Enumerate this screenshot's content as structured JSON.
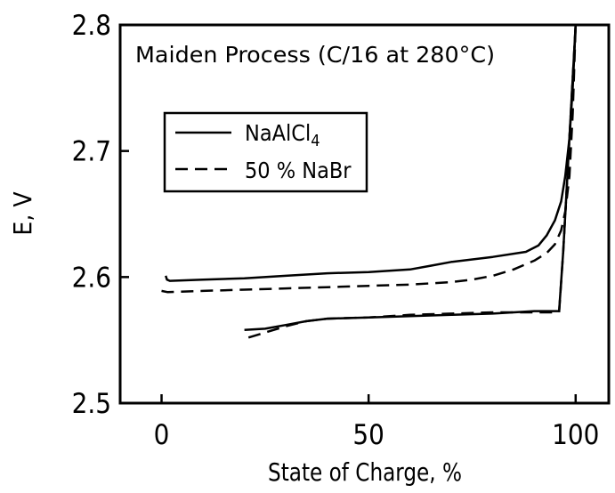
{
  "chart_data": {
    "type": "line",
    "title": "",
    "annotation": "Maiden Process (C/16 at 280°C)",
    "xlabel": "State of Charge, %",
    "ylabel": "E, V",
    "xlim": [
      -10,
      108
    ],
    "ylim": [
      2.5,
      2.8
    ],
    "x_ticks": [
      0,
      50,
      100
    ],
    "x_tick_labels": [
      "0",
      "50",
      "100"
    ],
    "y_ticks": [
      2.5,
      2.6,
      2.7,
      2.8
    ],
    "y_tick_labels": [
      "2.5",
      "2.6",
      "2.7",
      "2.8"
    ],
    "grid": false,
    "legend_position": "upper-left",
    "legend": [
      {
        "label_main": "NaAlCl",
        "label_sub": "4",
        "style": "solid"
      },
      {
        "label_main": "50 % NaBr",
        "label_sub": "",
        "style": "dashed"
      }
    ],
    "series": [
      {
        "style": "solid",
        "segments": [
          [
            [
              1,
              2.601
            ],
            [
              1.3,
              2.598
            ],
            [
              2,
              2.597
            ],
            [
              10,
              2.598
            ],
            [
              20,
              2.599
            ],
            [
              30,
              2.601
            ],
            [
              40,
              2.603
            ],
            [
              50,
              2.604
            ],
            [
              60,
              2.606
            ],
            [
              65,
              2.609
            ],
            [
              70,
              2.612
            ],
            [
              80,
              2.616
            ],
            [
              88,
              2.62
            ],
            [
              91,
              2.625
            ],
            [
              93,
              2.633
            ],
            [
              95,
              2.645
            ],
            [
              96.5,
              2.66
            ],
            [
              97.5,
              2.68
            ],
            [
              98.5,
              2.71
            ],
            [
              99.3,
              2.75
            ],
            [
              100,
              2.8
            ]
          ],
          [
            [
              20,
              2.558
            ],
            [
              25,
              2.559
            ],
            [
              30,
              2.562
            ],
            [
              35,
              2.565
            ],
            [
              40,
              2.567
            ],
            [
              50,
              2.568
            ],
            [
              60,
              2.569
            ],
            [
              70,
              2.57
            ],
            [
              80,
              2.571
            ],
            [
              90,
              2.573
            ],
            [
              96,
              2.573
            ],
            [
              97,
              2.62
            ],
            [
              98,
              2.68
            ],
            [
              99,
              2.74
            ],
            [
              100,
              2.8
            ]
          ]
        ]
      },
      {
        "style": "dashed",
        "segments": [
          [
            [
              0,
              2.589
            ],
            [
              1.5,
              2.588
            ],
            [
              10,
              2.589
            ],
            [
              20,
              2.59
            ],
            [
              30,
              2.591
            ],
            [
              40,
              2.592
            ],
            [
              50,
              2.593
            ],
            [
              60,
              2.594
            ],
            [
              65,
              2.595
            ],
            [
              70,
              2.596
            ],
            [
              75,
              2.598
            ],
            [
              80,
              2.601
            ],
            [
              85,
              2.606
            ],
            [
              90,
              2.613
            ],
            [
              93,
              2.619
            ],
            [
              95,
              2.626
            ],
            [
              96.5,
              2.637
            ],
            [
              97.5,
              2.652
            ],
            [
              98.5,
              2.68
            ],
            [
              99.3,
              2.73
            ],
            [
              100,
              2.8
            ]
          ],
          [
            [
              21,
              2.552
            ],
            [
              25,
              2.556
            ],
            [
              30,
              2.561
            ],
            [
              35,
              2.565
            ],
            [
              40,
              2.567
            ],
            [
              50,
              2.568
            ],
            [
              60,
              2.57
            ],
            [
              70,
              2.571
            ],
            [
              80,
              2.572
            ],
            [
              90,
              2.572
            ],
            [
              96,
              2.572
            ],
            [
              97,
              2.62
            ],
            [
              98,
              2.68
            ],
            [
              99,
              2.74
            ],
            [
              100,
              2.8
            ]
          ]
        ]
      }
    ]
  }
}
